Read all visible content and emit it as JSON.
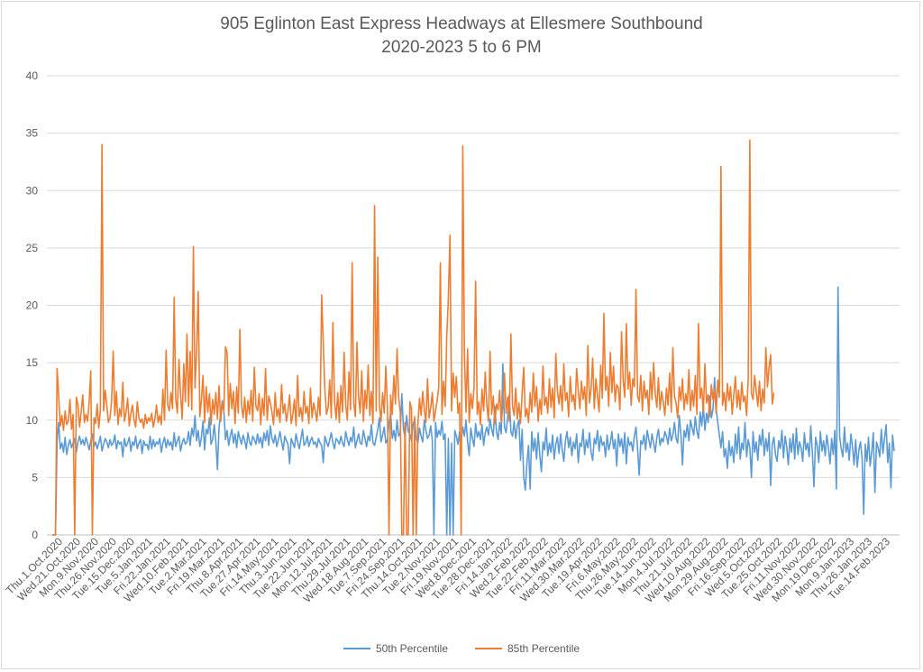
{
  "chart_data": {
    "type": "line",
    "title": "905 Eglinton East Express Headways at Ellesmere Southbound",
    "subtitle": "2020-2023 5 to 6 PM",
    "xlabel": "",
    "ylabel": "",
    "ylim": [
      0,
      40
    ],
    "yticks": [
      0,
      5,
      10,
      15,
      20,
      25,
      30,
      35,
      40
    ],
    "grid": true,
    "legend_position": "bottom",
    "x_tick_labels": [
      "Thu.1.Oct.2020",
      "Wed.21.Oct.2020",
      "Mon.9.Nov.2020",
      "Thu.26.Nov.2020",
      "Tue.15.Dec.2020",
      "Tue.5.Jan.2021",
      "Fri.22.Jan.2021",
      "Wed.10.Feb.2021",
      "Tue.2.Mar.2021",
      "Fri.19.Mar.2021",
      "Thu.8.Apr.2021",
      "Tue.27.Apr.2021",
      "Fri.14.May.2021",
      "Thu.3.Jun.2021",
      "Tue.22.Jun.2021",
      "Mon.12.Jul.2021",
      "Thu.29.Jul.2021",
      "Wed.18.Aug.2021",
      "Tue.7.Sep.2021",
      "Fri.24.Sep.2021",
      "Thu.14.Oct.2021",
      "Tue.2.Nov.2021",
      "Fri.19.Nov.2021",
      "Wed.8.Dec.2021",
      "Tue.28.Dec.2021",
      "Fri.14.Jan.2022",
      "Wed.2.Feb.2022",
      "Tue.22.Feb.2022",
      "Fri.11.Mar.2022",
      "Wed.30.Mar.2022",
      "Tue.19.Apr.2022",
      "Fri.6.May.2022",
      "Thu.26.May.2022",
      "Tue.14.Jun.2022",
      "Mon.4.Jul.2022",
      "Thu.21.Jul.2022",
      "Wed.10.Aug.2022",
      "Mon.29.Aug.2022",
      "Fri.16.Sep.2022",
      "Wed.5.Oct.2022",
      "Tue.25.Oct.2022",
      "Fri.11.Nov.2022",
      "Wed.30.Nov.2022",
      "Mon.19.Dec.2022",
      "Mon.9.Jan.2023",
      "Thu.26.Jan.2023",
      "Tue.14.Feb.2023"
    ],
    "series": [
      {
        "name": "50th Percentile",
        "color": "#5b9bd5",
        "values": [
          0,
          0,
          0,
          8.2,
          9.8,
          7.5,
          8.0,
          7.2,
          8.5,
          7.0,
          7.8,
          8.3,
          7.6,
          8.0,
          8.4,
          7.2,
          8.1,
          8.6,
          7.9,
          8.3,
          7.8,
          8.5,
          8.0,
          7.4,
          8.2,
          8.8,
          7.7,
          8.1,
          7.5,
          8.0,
          8.6,
          7.3,
          7.9,
          8.4,
          8.1,
          7.6,
          8.3,
          7.8,
          8.0,
          8.7,
          7.5,
          8.2,
          7.9,
          8.1,
          6.8,
          8.4,
          7.7,
          8.0,
          8.5,
          7.3,
          8.1,
          7.8,
          8.6,
          7.5,
          8.0,
          8.3,
          7.1,
          8.2,
          7.8,
          7.9,
          7.4,
          8.6,
          7.5,
          8.3,
          7.7,
          8.1,
          7.9,
          8.4,
          7.2,
          8.0,
          8.5,
          7.6,
          8.3,
          7.8,
          8.1,
          7.4,
          8.9,
          7.7,
          8.2,
          8.6,
          7.3,
          8.0,
          8.4,
          7.9,
          8.1,
          9.0,
          7.8,
          9.3,
          8.6,
          10.4,
          8.2,
          9.1,
          7.7,
          8.5,
          9.9,
          7.4,
          9.2,
          8.8,
          10.2,
          7.9,
          8.3,
          9.6,
          8.1,
          5.7,
          9.4,
          10.5,
          11.7,
          10.8,
          8.3,
          9.1,
          7.8,
          8.6,
          9.2,
          8.0,
          8.8,
          7.6,
          9.0,
          8.4,
          7.9,
          8.7,
          8.2,
          7.5,
          8.9,
          8.1,
          7.8,
          8.6,
          8.3,
          7.9,
          8.8,
          8.0,
          8.5,
          7.6,
          8.9,
          8.2,
          9.1,
          7.8,
          9.5,
          8.4,
          8.0,
          8.7,
          7.7,
          8.3,
          9.0,
          8.1,
          7.4,
          8.6,
          8.2,
          7.9,
          6.2,
          8.4,
          8.0,
          7.6,
          8.8,
          8.1,
          7.5,
          8.3,
          9.2,
          7.8,
          8.0,
          8.6,
          7.7,
          8.2,
          8.5,
          7.9,
          8.1,
          7.6,
          8.4,
          8.0,
          7.8,
          6.3,
          8.6,
          8.1,
          7.7,
          8.3,
          8.9,
          8.0,
          7.5,
          8.4,
          8.2,
          7.9,
          8.6,
          8.0,
          7.7,
          9.0,
          8.3,
          7.8,
          8.5,
          8.1,
          9.4,
          7.6,
          8.2,
          8.8,
          8.0,
          7.9,
          9.1,
          8.4,
          7.7,
          8.6,
          8.2,
          9.6,
          8.0,
          7.8,
          8.5,
          9.2,
          10.2,
          8.1,
          8.7,
          9.4,
          8.0,
          8.3,
          9.8,
          10.6,
          8.4,
          9.1,
          8.2,
          10.0,
          8.6,
          8.9,
          12.3,
          9.2,
          8.5,
          10.4,
          9.0,
          8.8,
          8.2,
          9.6,
          10.1,
          8.4,
          8.0,
          9.3,
          8.6,
          8.1,
          10.0,
          9.1,
          8.4,
          8.7,
          9.5,
          8.2,
          0,
          9.8,
          8.5,
          9.1,
          8.7,
          9.9,
          8.3,
          8.8,
          0,
          8.4,
          0,
          8.0,
          0,
          9.1,
          8.6,
          7.9,
          9.0,
          8.2,
          9.4,
          8.6,
          10.0,
          8.1,
          6.9,
          9.3,
          8.4,
          7.7,
          9.7,
          8.5,
          9.0,
          8.3,
          9.6,
          7.8,
          8.9,
          9.4,
          8.7,
          10.1,
          9.2,
          8.6,
          11.2,
          9.0,
          8.3,
          9.8,
          8.8,
          14.9,
          9.4,
          8.9,
          10.3,
          12.2,
          9.0,
          8.6,
          9.9,
          8.4,
          9.5,
          10.0,
          6.5,
          9.2,
          5.0,
          3.9,
          6.3,
          7.8,
          4.0,
          9.0,
          7.3,
          8.4,
          6.6,
          8.9,
          7.0,
          5.5,
          8.1,
          7.4,
          9.3,
          6.9,
          8.0,
          7.2,
          8.7,
          6.6,
          7.9,
          8.5,
          7.1,
          8.8,
          7.4,
          6.4,
          8.2,
          9.0,
          7.6,
          8.5,
          6.9,
          8.1,
          7.5,
          8.8,
          6.3,
          8.0,
          7.7,
          9.2,
          7.0,
          8.3,
          7.6,
          8.9,
          7.2,
          6.5,
          8.4,
          7.9,
          9.1,
          7.3,
          8.6,
          7.8,
          8.1,
          6.8,
          8.7,
          7.4,
          8.0,
          9.0,
          7.5,
          8.3,
          6.0,
          8.8,
          7.7,
          8.4,
          7.1,
          8.9,
          6.2,
          8.5,
          7.8,
          8.1,
          7.3,
          8.6,
          9.4,
          7.5,
          5.2,
          8.2,
          7.9,
          8.7,
          7.4,
          9.1,
          8.3,
          7.6,
          8.8,
          8.0,
          7.2,
          8.5,
          9.2,
          7.8,
          8.4,
          8.1,
          9.0,
          8.6,
          7.9,
          9.3,
          8.2,
          8.7,
          9.8,
          8.4,
          8.0,
          10.4,
          8.8,
          6.1,
          9.1,
          8.5,
          9.6,
          8.2,
          10.0,
          9.3,
          8.7,
          10.3,
          9.0,
          8.4,
          10.7,
          9.5,
          11.2,
          9.1,
          10.6,
          9.8,
          12.1,
          10.2,
          10.9,
          13.7,
          11.0,
          9.8,
          8.7,
          7.6,
          9.0,
          6.8,
          7.5,
          5.8,
          8.2,
          6.9,
          7.7,
          6.3,
          8.8,
          7.1,
          9.4,
          6.6,
          8.0,
          7.4,
          9.8,
          6.8,
          8.3,
          7.6,
          5.0,
          9.0,
          7.2,
          8.1,
          6.5,
          8.7,
          7.8,
          9.2,
          6.9,
          8.4,
          7.3,
          8.9,
          4.3,
          7.9,
          8.5,
          7.0,
          6.4,
          8.2,
          7.5,
          9.1,
          6.7,
          8.6,
          7.7,
          6.1,
          8.4,
          7.2,
          8.8,
          6.6,
          9.3,
          7.0,
          8.1,
          7.6,
          6.4,
          8.9,
          7.4,
          8.0,
          6.8,
          9.5,
          7.1,
          4.2,
          8.5,
          7.8,
          6.3,
          9.0,
          7.3,
          8.2,
          6.9,
          8.7,
          7.6,
          6.2,
          8.4,
          7.0,
          9.1,
          4.0,
          21.6,
          8.6,
          7.5,
          6.8,
          9.4,
          7.2,
          8.0,
          6.5,
          8.8,
          7.7,
          6.1,
          8.3,
          5.9,
          7.4,
          8.1,
          6.7,
          1.8,
          7.9,
          6.4,
          8.5,
          6.0,
          7.2,
          8.9,
          3.7,
          8.1,
          7.6,
          6.8,
          9.2,
          7.1,
          8.4,
          9.6,
          6.3,
          8.0,
          4.1,
          8.7,
          7.3
        ]
      },
      {
        "name": "85th Percentile",
        "color": "#ed7d31",
        "values": [
          0,
          0,
          0,
          14.5,
          12.1,
          9.5,
          10.4,
          9.1,
          10.8,
          9.6,
          9.9,
          11.8,
          9.2,
          10.5,
          0,
          12.0,
          11.4,
          9.4,
          10.7,
          12.2,
          9.8,
          10.5,
          9.9,
          11.6,
          14.3,
          0,
          10.2,
          9.7,
          11.4,
          9.3,
          10.9,
          34.0,
          10.8,
          12.6,
          11.3,
          9.8,
          10.2,
          11.7,
          16.0,
          10.4,
          12.5,
          9.6,
          11.0,
          10.3,
          13.3,
          9.9,
          10.7,
          11.9,
          9.5,
          10.6,
          11.3,
          10.0,
          9.4,
          11.6,
          10.2,
          9.8,
          10.1,
          9.3,
          10.5,
          9.7,
          10.2,
          9.9,
          10.6,
          9.4,
          10.1,
          11.3,
          9.8,
          10.4,
          9.6,
          12.7,
          10.0,
          16.1,
          11.3,
          10.8,
          12.4,
          11.0,
          20.7,
          11.8,
          10.6,
          15.3,
          12.2,
          10.1,
          14.9,
          11.6,
          17.5,
          11.2,
          16.0,
          10.9,
          25.1,
          12.8,
          15.9,
          21.2,
          10.3,
          11.7,
          13.9,
          9.8,
          12.9,
          10.7,
          12.3,
          9.6,
          11.8,
          10.5,
          12.4,
          10.1,
          13.0,
          9.9,
          11.5,
          10.8,
          16.4,
          15.9,
          10.4,
          13.2,
          11.0,
          12.5,
          9.7,
          12.9,
          10.6,
          17.9,
          11.3,
          10.2,
          12.0,
          9.8,
          11.7,
          10.5,
          12.6,
          9.9,
          14.6,
          11.2,
          10.8,
          12.3,
          9.6,
          11.9,
          10.4,
          14.5,
          10.0,
          12.1,
          11.5,
          10.7,
          9.6,
          12.4,
          10.3,
          11.0,
          9.8,
          13.1,
          10.6,
          11.4,
          9.9,
          10.8,
          12.2,
          9.7,
          10.5,
          11.8,
          9.5,
          13.9,
          10.3,
          11.1,
          9.9,
          12.5,
          10.6,
          11.2,
          9.7,
          12.8,
          10.2,
          11.5,
          10.8,
          9.9,
          12.0,
          10.4,
          20.9,
          16.7,
          12.6,
          10.5,
          11.1,
          13.5,
          10.2,
          18.5,
          11.7,
          10.1,
          12.4,
          9.8,
          13.0,
          10.7,
          15.9,
          11.3,
          10.0,
          14.2,
          10.9,
          23.7,
          11.5,
          10.3,
          16.8,
          12.1,
          10.6,
          14.3,
          9.9,
          12.6,
          11.0,
          14.8,
          10.4,
          12.5,
          9.7,
          28.7,
          10.8,
          24.2,
          11.3,
          9.9,
          12.4,
          10.6,
          14.7,
          11.1,
          0,
          12.2,
          10.5,
          13.9,
          11.4,
          16.2,
          12.0,
          10.7,
          0,
          0,
          9.8,
          0,
          0,
          11.6,
          11.0,
          0,
          10.3,
          0,
          9.6,
          11.9,
          10.4,
          12.5,
          10.9,
          9.8,
          13.6,
          10.2,
          11.1,
          12.4,
          9.9,
          10.8,
          11.7,
          12.9,
          23.7,
          10.5,
          13.4,
          11.2,
          17.3,
          20.6,
          26.1,
          10.8,
          14.1,
          12.0,
          13.8,
          10.6,
          11.5,
          0,
          33.9,
          16.0,
          10.7,
          16.2,
          9.8,
          12.3,
          11.0,
          12.8,
          22.1,
          10.5,
          11.6,
          9.6,
          12.7,
          10.8,
          14.2,
          11.3,
          9.9,
          16.0,
          10.5,
          12.1,
          9.7,
          11.4,
          10.9,
          12.6,
          9.8,
          11.3,
          14.1,
          10.6,
          12.0,
          9.9,
          17.5,
          11.2,
          10.4,
          12.8,
          10.1,
          11.5,
          9.7,
          12.3,
          14.6,
          10.3,
          11.0,
          9.8,
          12.4,
          10.7,
          14.1,
          11.2,
          12.9,
          9.9,
          11.8,
          10.5,
          14.7,
          11.3,
          12.0,
          10.6,
          13.6,
          11.1,
          12.8,
          10.2,
          15.8,
          12.5,
          11.4,
          13.0,
          10.8,
          14.9,
          11.7,
          12.4,
          10.3,
          13.8,
          11.6,
          12.2,
          10.9,
          14.5,
          12.6,
          11.0,
          13.4,
          11.8,
          12.9,
          10.4,
          16.5,
          11.5,
          12.7,
          15.4,
          11.0,
          13.6,
          12.1,
          10.7,
          14.8,
          11.9,
          19.3,
          12.6,
          13.8,
          11.2,
          15.9,
          12.4,
          14.7,
          11.6,
          13.1,
          12.8,
          10.9,
          17.7,
          13.5,
          12.0,
          18.4,
          12.7,
          14.2,
          11.3,
          13.6,
          12.9,
          21.4,
          12.1,
          11.6,
          13.9,
          10.8,
          13.4,
          11.9,
          12.6,
          10.5,
          14.2,
          11.8,
          15.0,
          12.3,
          11.1,
          13.7,
          10.9,
          12.5,
          11.6,
          10.4,
          12.8,
          11.3,
          14.1,
          10.7,
          16.3,
          12.1,
          11.5,
          10.2,
          12.9,
          11.7,
          13.6,
          10.9,
          12.3,
          11.4,
          14.4,
          10.8,
          12.6,
          11.2,
          13.9,
          10.5,
          18.4,
          11.9,
          12.8,
          10.7,
          14.9,
          11.5,
          12.2,
          10.3,
          13.1,
          11.8,
          12.7,
          10.6,
          13.5,
          12.0,
          32.1,
          11.3,
          12.4,
          10.8,
          13.2,
          11.7,
          12.9,
          10.5,
          12.2,
          13.8,
          11.1,
          12.6,
          10.9,
          13.3,
          11.6,
          12.1,
          10.4,
          13.7,
          34.4,
          12.3,
          11.8,
          13.9,
          12.5,
          11.2,
          13.4,
          10.8,
          12.7,
          11.5,
          16.3,
          12.9,
          14.6,
          15.7,
          11.4,
          12.4
        ]
      }
    ]
  }
}
